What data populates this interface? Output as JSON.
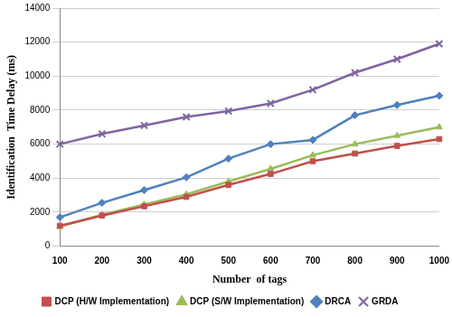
{
  "chart_data": {
    "type": "line",
    "x_label": "Number  of tags",
    "y_label": "Identification  Time Delay (ms)",
    "categories": [
      "100",
      "200",
      "300",
      "400",
      "500",
      "600",
      "700",
      "800",
      "900",
      "1000"
    ],
    "series": [
      {
        "name": "DCP (H/W Implementation)",
        "color": "#c0504d",
        "marker": "square",
        "values": [
          1200,
          1800,
          2350,
          2900,
          3600,
          4250,
          5000,
          5450,
          5900,
          6300
        ]
      },
      {
        "name": "DCP (S/W Implementation)",
        "color": "#9bbb59",
        "marker": "triangle",
        "values": [
          1150,
          1850,
          2450,
          3050,
          3800,
          4550,
          5350,
          6000,
          6500,
          7000
        ]
      },
      {
        "name": "DRCA",
        "color": "#4f81bd",
        "marker": "diamond",
        "values": [
          1700,
          2550,
          3300,
          4050,
          5150,
          6000,
          6250,
          7700,
          8300,
          8850
        ]
      },
      {
        "name": "GRDA",
        "color": "#8064a2",
        "marker": "x",
        "values": [
          6000,
          6600,
          7100,
          7600,
          7950,
          8400,
          9200,
          10200,
          11000,
          11900
        ]
      }
    ],
    "ylim": [
      0,
      14000
    ],
    "yticks": [
      0,
      2000,
      4000,
      6000,
      8000,
      10000,
      12000,
      14000
    ],
    "grid": true,
    "legend": "bottom"
  }
}
